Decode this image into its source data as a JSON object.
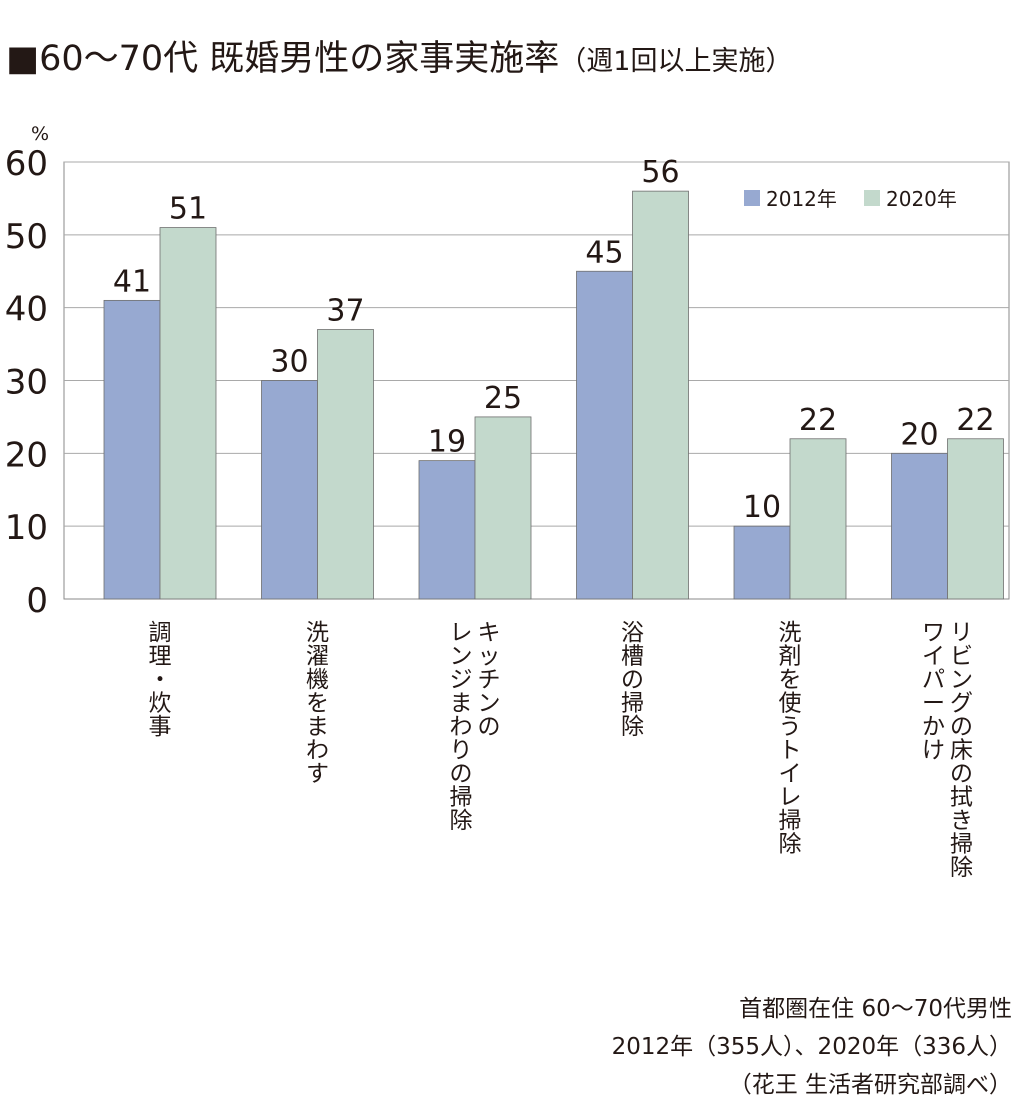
{
  "title": {
    "main": "■60〜70代 既婚男性の家事実施率",
    "sub": "（週1回以上実施）"
  },
  "chart_data": {
    "type": "bar",
    "title": "■60〜70代 既婚男性の家事実施率（週1回以上実施）",
    "ylabel": "%",
    "ylim": [
      0,
      60
    ],
    "yticks": [
      "0",
      "10",
      "20",
      "30",
      "40",
      "50",
      "60"
    ],
    "grid": true,
    "legend_position": "top-right",
    "categories": [
      "調理・炊事",
      "洗濯機をまわす",
      "キッチンの\nレンジまわりの掃除",
      "浴槽の掃除",
      "洗剤を使うトイレ掃除",
      "リビングの床の拭き掃除\nワイパーかけ"
    ],
    "series": [
      {
        "name": "2012年",
        "color": "#97a9d1",
        "values": [
          41,
          30,
          19,
          45,
          10,
          20
        ]
      },
      {
        "name": "2020年",
        "color": "#c3d9cc",
        "values": [
          51,
          37,
          25,
          56,
          22,
          22
        ]
      }
    ]
  },
  "source": {
    "line1": "首都圏在住 60〜70代男性",
    "line2": "2012年（355人）、2020年（336人）",
    "line3": "（花王 生活者研究部調べ）"
  }
}
